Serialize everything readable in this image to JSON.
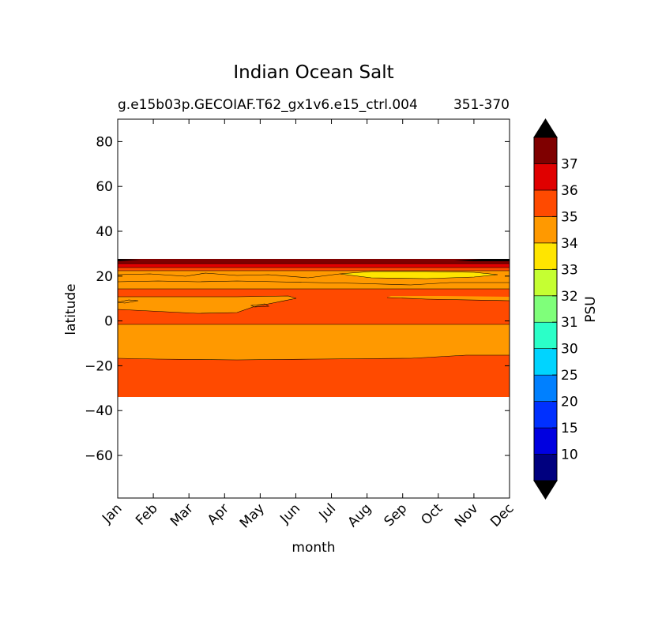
{
  "chart_data": {
    "type": "contour",
    "title": "Indian Ocean Salt",
    "subtitle_left": "g.e15b03p.GECOIAF.T62_gx1v6.e15_ctrl.004",
    "subtitle_right": "351-370",
    "xlabel": "month",
    "ylabel": "latitude",
    "x_ticks": [
      "Jan",
      "Feb",
      "Mar",
      "Apr",
      "May",
      "Jun",
      "Jul",
      "Aug",
      "Sep",
      "Oct",
      "Nov",
      "Dec"
    ],
    "ylim": [
      -79,
      90
    ],
    "y_ticks": [
      80,
      60,
      40,
      20,
      0,
      -20,
      -40,
      -60
    ],
    "y_tick_labels": [
      "80",
      "60",
      "40",
      "20",
      "0",
      "−20",
      "−40",
      "−60"
    ],
    "grid": false,
    "colorbar": {
      "label": "PSU",
      "extend": "both",
      "levels": [
        10,
        15,
        20,
        25,
        30,
        31,
        32,
        33,
        34,
        35,
        36,
        37
      ],
      "tick_labels": [
        "10",
        "15",
        "20",
        "25",
        "30",
        "31",
        "32",
        "33",
        "34",
        "35",
        "36",
        "37"
      ],
      "colors": [
        "#00007f",
        "#0000e0",
        "#0030ff",
        "#0080ff",
        "#00d4ff",
        "#2bffc8",
        "#7fff7a",
        "#c5ff32",
        "#ffe500",
        "#ff9900",
        "#ff4a00",
        "#e00000",
        "#7f0000"
      ],
      "under_color": "#000000",
      "over_color": "#000000"
    },
    "bands": [
      {
        "level": "35-36",
        "y_range": [
          -34,
          -17
        ],
        "color": "#ff4a00"
      },
      {
        "level": "34-35",
        "y_range": [
          -17,
          -2
        ],
        "color": "#ff9900"
      },
      {
        "level": "35-36",
        "y_range": [
          -2,
          14
        ],
        "color": "#ff4a00"
      },
      {
        "level": "34-35",
        "y_range": [
          14,
          22
        ],
        "color": "#ff9900"
      },
      {
        "level": "35-36",
        "y_range": [
          22,
          23.5
        ],
        "color": "#ff4a00"
      },
      {
        "level": "36-37",
        "y_range": [
          23.5,
          25
        ],
        "color": "#e00000"
      },
      {
        "level": ">37",
        "y_range": [
          25,
          27
        ],
        "color": "#7f0000"
      }
    ]
  }
}
